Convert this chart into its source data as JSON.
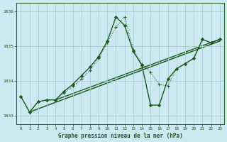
{
  "title": "Graphe pression niveau de la mer (hPa)",
  "bg_color": "#cce8f0",
  "grid_color": "#b0d4e0",
  "line_color": "#1a5c1a",
  "xlim": [
    -0.5,
    23.5
  ],
  "ylim": [
    1032.75,
    1036.25
  ],
  "yticks": [
    1033,
    1034,
    1035,
    1036
  ],
  "xticks": [
    0,
    1,
    2,
    3,
    4,
    5,
    6,
    7,
    8,
    9,
    10,
    11,
    12,
    13,
    14,
    15,
    16,
    17,
    18,
    19,
    20,
    21,
    22,
    23
  ],
  "series_dot_x": [
    0,
    1,
    2,
    3,
    4,
    5,
    6,
    7,
    8,
    9,
    10,
    11,
    12,
    13,
    14,
    15,
    16,
    17,
    18,
    19,
    20,
    21,
    22,
    23
  ],
  "series_dot_y": [
    1033.55,
    1033.1,
    1033.4,
    1033.45,
    1033.45,
    1033.65,
    1033.85,
    1034.05,
    1034.3,
    1034.65,
    1035.1,
    1035.55,
    1035.85,
    1034.9,
    1034.5,
    1034.25,
    1033.9,
    1033.85,
    1034.35,
    1034.5,
    1034.65,
    1035.2,
    1035.1,
    1035.2
  ],
  "series_solid_x": [
    0,
    1,
    2,
    3,
    4,
    5,
    6,
    7,
    8,
    9,
    10,
    11,
    12,
    13,
    14,
    15,
    16,
    17,
    18,
    19,
    20,
    21,
    22,
    23
  ],
  "series_solid_y": [
    1033.55,
    1033.1,
    1033.4,
    1033.45,
    1033.45,
    1033.7,
    1033.9,
    1034.15,
    1034.4,
    1034.7,
    1035.15,
    1035.85,
    1035.6,
    1034.85,
    1034.45,
    1033.3,
    1033.3,
    1034.05,
    1034.35,
    1034.5,
    1034.65,
    1035.2,
    1035.1,
    1035.2
  ],
  "trend1_x": [
    1,
    23
  ],
  "trend1_y": [
    1033.1,
    1035.15
  ],
  "trend2_x": [
    4,
    23
  ],
  "trend2_y": [
    1033.45,
    1035.2
  ]
}
